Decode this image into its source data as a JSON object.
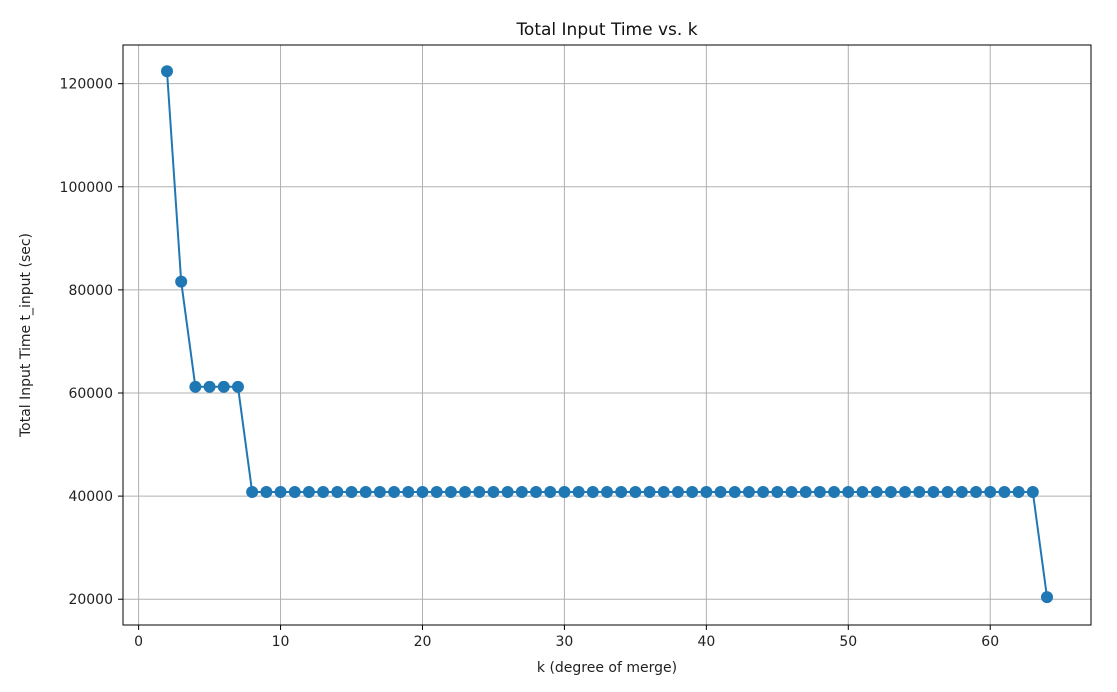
{
  "chart_data": {
    "type": "line",
    "title": "Total Input Time vs. k",
    "xlabel": "k (degree of merge)",
    "ylabel": "Total Input Time t_input (sec)",
    "xlim": [
      -1.1,
      67.1
    ],
    "ylim": [
      15000,
      127500
    ],
    "xticks": [
      0,
      10,
      20,
      30,
      40,
      50,
      60
    ],
    "yticks": [
      20000,
      40000,
      60000,
      80000,
      100000,
      120000
    ],
    "xtick_labels": [
      "0",
      "10",
      "20",
      "30",
      "40",
      "50",
      "60"
    ],
    "ytick_labels": [
      "20000",
      "40000",
      "60000",
      "80000",
      "100000",
      "120000"
    ],
    "grid": true,
    "marker": "circle",
    "color": "#1f77b4",
    "series": [
      {
        "x": [
          2,
          3,
          4,
          5,
          6,
          7,
          8,
          9,
          10,
          11,
          12,
          13,
          14,
          15,
          16,
          17,
          18,
          19,
          20,
          21,
          22,
          23,
          24,
          25,
          26,
          27,
          28,
          29,
          30,
          31,
          32,
          33,
          34,
          35,
          36,
          37,
          38,
          39,
          40,
          41,
          42,
          43,
          44,
          45,
          46,
          47,
          48,
          49,
          50,
          51,
          52,
          53,
          54,
          55,
          56,
          57,
          58,
          59,
          60,
          61,
          62,
          63,
          64
        ],
        "y": [
          122400,
          81600,
          61200,
          61200,
          61200,
          61200,
          40800,
          40800,
          40800,
          40800,
          40800,
          40800,
          40800,
          40800,
          40800,
          40800,
          40800,
          40800,
          40800,
          40800,
          40800,
          40800,
          40800,
          40800,
          40800,
          40800,
          40800,
          40800,
          40800,
          40800,
          40800,
          40800,
          40800,
          40800,
          40800,
          40800,
          40800,
          40800,
          40800,
          40800,
          40800,
          40800,
          40800,
          40800,
          40800,
          40800,
          40800,
          40800,
          40800,
          40800,
          40800,
          40800,
          40800,
          40800,
          40800,
          40800,
          40800,
          40800,
          40800,
          40800,
          40800,
          40800,
          20400
        ]
      }
    ]
  }
}
